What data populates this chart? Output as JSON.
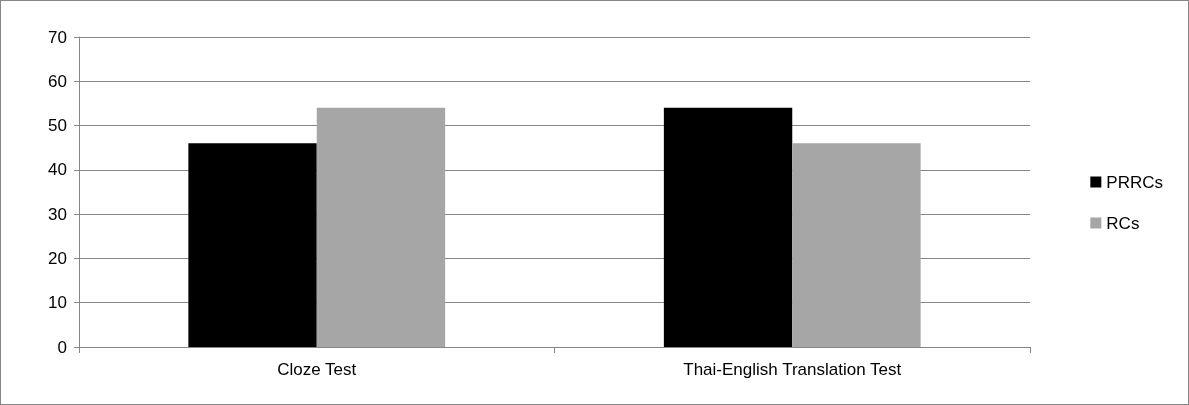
{
  "chart_data": {
    "type": "bar",
    "categories": [
      "Cloze Test",
      "Thai-English Translation Test"
    ],
    "series": [
      {
        "name": "PRRCs",
        "color": "#000000",
        "values": [
          46,
          54
        ]
      },
      {
        "name": "RCs",
        "color": "#a6a6a6",
        "values": [
          54,
          46
        ]
      }
    ],
    "ylim": [
      0,
      70
    ],
    "yticks": [
      0,
      10,
      20,
      30,
      40,
      50,
      60,
      70
    ],
    "grid": "y",
    "legend": "right"
  }
}
